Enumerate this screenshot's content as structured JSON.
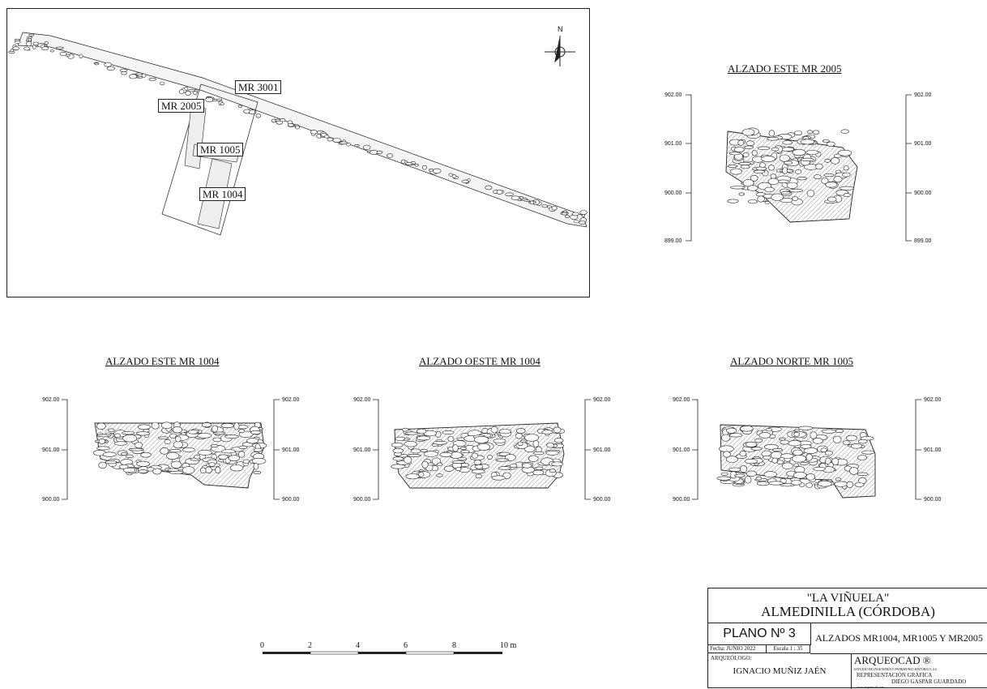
{
  "site_plan": {
    "labels": {
      "mr3001": "MR 3001",
      "mr2005": "MR 2005",
      "mr1005": "MR 1005",
      "mr1004": "MR 1004"
    },
    "north": "N"
  },
  "elevations": [
    {
      "id": "e2005",
      "title": "ALZADO ESTE MR 2005",
      "scale": [
        "902.00",
        "901.00",
        "900.00",
        "899.00"
      ]
    },
    {
      "id": "e1004e",
      "title": "ALZADO ESTE MR 1004",
      "scale": [
        "902.00",
        "901.00",
        "900.00"
      ]
    },
    {
      "id": "e1004o",
      "title": "ALZADO OESTE MR 1004",
      "scale": [
        "902.00",
        "901.00",
        "900.00"
      ]
    },
    {
      "id": "e1005",
      "title": "ALZADO NORTE MR 1005",
      "scale": [
        "902.00",
        "901.00",
        "900.00"
      ]
    }
  ],
  "scale_bar": {
    "ticks": [
      "0",
      "2",
      "4",
      "6",
      "8"
    ],
    "end_label": "10 m"
  },
  "title_block": {
    "project": "\"LA VIÑUELA\"",
    "location": "ALMEDINILLA  (CÓRDOBA)",
    "plano": "PLANO Nº 3",
    "plano_title": "ALZADOS MR1004, MR1005 Y MR2005",
    "fecha": "Fecha: JUNIO 2022",
    "escala": "Escala 1 : 35",
    "arqueologo_label": "ARQUEÓLOGO:",
    "arqueologo": "IGNACIO MUÑIZ JAÉN",
    "company": "ARQUEOCAD ®",
    "company_sub": "ESTUDIO DE INGENIERÍA Y PATRIMONIO HISTÓRICO, S.L.",
    "rep_label": "REPRESENTACIÓN GRÁFICA",
    "rep_name": "DIEGO GASPAR GUARDADO",
    "web": "www.arqueocad.com"
  },
  "colors": {
    "line": "#222222",
    "stone": "#ffffff",
    "hatch": "#9a9a9a"
  }
}
